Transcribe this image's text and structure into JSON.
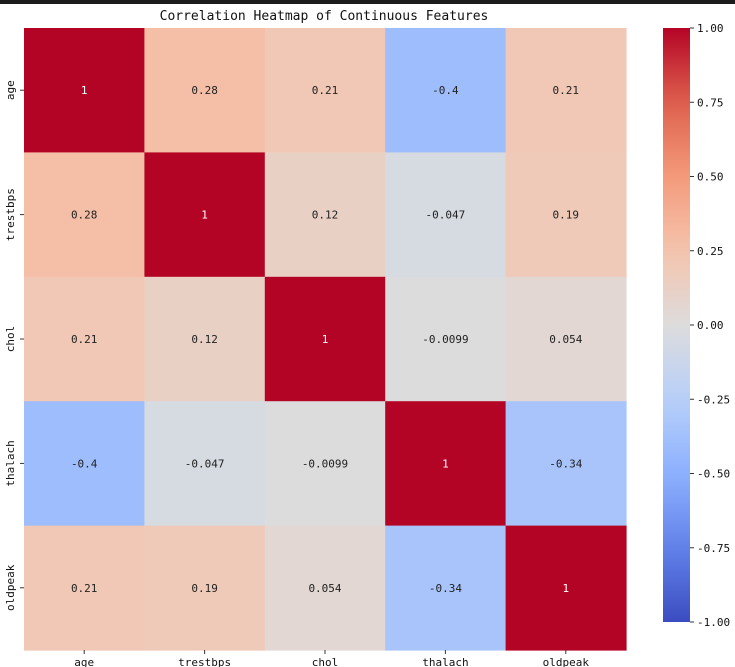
{
  "chart_data": {
    "type": "heatmap",
    "title": "Correlation Heatmap of Continuous Features",
    "rows": [
      "age",
      "trestbps",
      "chol",
      "thalach",
      "oldpeak"
    ],
    "cols": [
      "age",
      "trestbps",
      "chol",
      "thalach",
      "oldpeak"
    ],
    "values": [
      [
        1,
        0.28,
        0.21,
        -0.4,
        0.21
      ],
      [
        0.28,
        1,
        0.12,
        -0.047,
        0.19
      ],
      [
        0.21,
        0.12,
        1,
        -0.0099,
        0.054
      ],
      [
        -0.4,
        -0.047,
        -0.0099,
        1,
        -0.34
      ],
      [
        0.21,
        0.19,
        0.054,
        -0.34,
        1
      ]
    ],
    "cell_labels": [
      [
        "1",
        "0.28",
        "0.21",
        "-0.4",
        "0.21"
      ],
      [
        "0.28",
        "1",
        "0.12",
        "-0.047",
        "0.19"
      ],
      [
        "0.21",
        "0.12",
        "1",
        "-0.0099",
        "0.054"
      ],
      [
        "-0.4",
        "-0.047",
        "-0.0099",
        "1",
        "-0.34"
      ],
      [
        "0.21",
        "0.19",
        "0.054",
        "-0.34",
        "1"
      ]
    ],
    "colormap": "coolwarm",
    "vmin": -1.0,
    "vmax": 1.0,
    "colorbar_ticks": [
      "1.00",
      "0.75",
      "0.50",
      "0.25",
      "0.00",
      "-0.25",
      "-0.50",
      "-0.75",
      "-1.00"
    ],
    "colorbar_tick_values": [
      1,
      0.75,
      0.5,
      0.25,
      0,
      -0.25,
      -0.5,
      -0.75,
      -1
    ]
  }
}
